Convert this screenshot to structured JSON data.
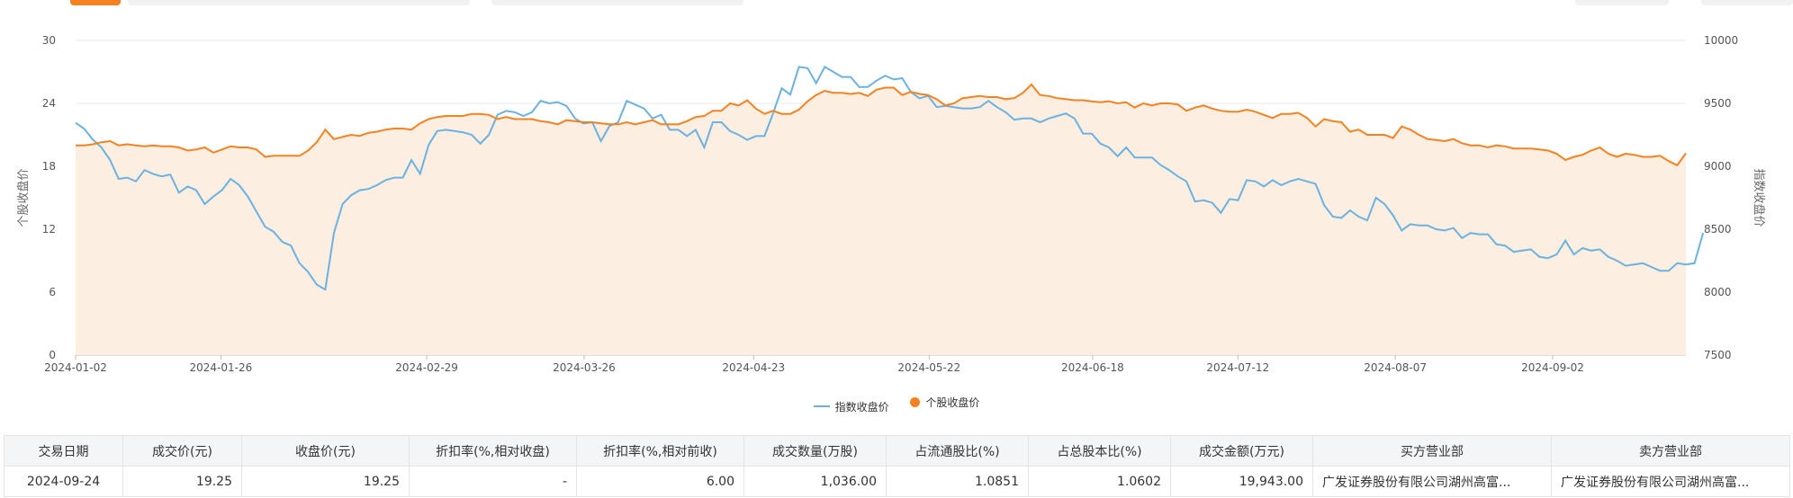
{
  "colors": {
    "index_line": "#6cb2e0",
    "stock_line": "#f58220",
    "area_fill": "#fdeee2",
    "grid": "#e9e9e9"
  },
  "chart_data": {
    "type": "line",
    "title": "",
    "xlabel": "",
    "ylabel": "个股收盘价",
    "y2label": "指数收盘价",
    "ylim": [
      0,
      30
    ],
    "yticks": [
      0,
      6,
      12,
      18,
      24,
      30
    ],
    "y2lim": [
      7500,
      10000
    ],
    "y2ticks": [
      7500,
      8000,
      8500,
      9000,
      9500,
      10000
    ],
    "x_start": "2024-01-02",
    "x_end": "2024-09-24",
    "x_ticks": [
      "2024-01-02",
      "2024-01-26",
      "2024-02-29",
      "2024-03-26",
      "2024-04-23",
      "2024-05-22",
      "2024-06-18",
      "2024-07-12",
      "2024-08-07",
      "2024-09-02"
    ],
    "grid": true,
    "legend_position": "bottom-center",
    "series": [
      {
        "name": "指数收盘价",
        "axis": "right",
        "values": [
          9345,
          9298,
          9212,
          9150,
          9050,
          8900,
          8910,
          8880,
          8970,
          8940,
          8920,
          8935,
          8790,
          8840,
          8810,
          8700,
          8760,
          8810,
          8900,
          8850,
          8760,
          8640,
          8520,
          8480,
          8400,
          8370,
          8230,
          8160,
          8060,
          8020,
          8470,
          8700,
          8770,
          8810,
          8820,
          8850,
          8890,
          8910,
          8910,
          9050,
          8940,
          9170,
          9280,
          9290,
          9280,
          9270,
          9250,
          9180,
          9250,
          9410,
          9440,
          9430,
          9400,
          9430,
          9520,
          9500,
          9510,
          9480,
          9380,
          9340,
          9350,
          9200,
          9320,
          9350,
          9520,
          9490,
          9460,
          9380,
          9410,
          9290,
          9290,
          9240,
          9290,
          9150,
          9350,
          9350,
          9280,
          9250,
          9210,
          9240,
          9240,
          9420,
          9620,
          9570,
          9790,
          9780,
          9660,
          9790,
          9750,
          9710,
          9710,
          9630,
          9630,
          9680,
          9720,
          9690,
          9700,
          9590,
          9540,
          9560,
          9470,
          9480,
          9470,
          9460,
          9460,
          9470,
          9520,
          9470,
          9430,
          9370,
          9380,
          9380,
          9350,
          9380,
          9400,
          9420,
          9380,
          9260,
          9260,
          9180,
          9150,
          9080,
          9150,
          9070,
          9070,
          9070,
          9010,
          8970,
          8920,
          8880,
          8720,
          8730,
          8710,
          8630,
          8740,
          8730,
          8890,
          8880,
          8840,
          8890,
          8850,
          8880,
          8900,
          8880,
          8860,
          8690,
          8600,
          8590,
          8650,
          8600,
          8570,
          8750,
          8700,
          8610,
          8490,
          8540,
          8530,
          8530,
          8500,
          8490,
          8510,
          8430,
          8470,
          8460,
          8460,
          8380,
          8370,
          8320,
          8330,
          8340,
          8280,
          8270,
          8300,
          8410,
          8300,
          8350,
          8330,
          8340,
          8280,
          8250,
          8210,
          8220,
          8230,
          8200,
          8170,
          8170,
          8230,
          8220,
          8230,
          8470
        ]
      },
      {
        "name": "个股收盘价",
        "axis": "left",
        "values": [
          20.0,
          20.0,
          20.1,
          20.3,
          20.4,
          20.0,
          20.1,
          20.0,
          19.9,
          20.0,
          19.9,
          19.9,
          19.8,
          19.5,
          19.6,
          19.8,
          19.3,
          19.6,
          19.9,
          19.8,
          19.8,
          19.6,
          18.9,
          19.0,
          19.0,
          19.0,
          19.0,
          19.5,
          20.3,
          21.5,
          20.6,
          20.8,
          21.0,
          20.9,
          21.2,
          21.3,
          21.5,
          21.6,
          21.6,
          21.5,
          22.1,
          22.5,
          22.7,
          22.8,
          22.8,
          22.8,
          23.0,
          23.0,
          22.9,
          22.5,
          22.7,
          22.5,
          22.5,
          22.5,
          22.3,
          22.2,
          22.0,
          22.4,
          22.3,
          22.2,
          22.2,
          22.1,
          22.0,
          22.0,
          22.2,
          22.0,
          22.2,
          22.4,
          22.0,
          22.0,
          22.0,
          22.3,
          22.7,
          22.8,
          23.3,
          23.3,
          24.0,
          23.8,
          24.3,
          23.5,
          23.0,
          23.3,
          23.0,
          23.0,
          23.4,
          24.2,
          24.8,
          25.2,
          25.0,
          25.0,
          24.9,
          25.0,
          24.7,
          25.3,
          25.5,
          25.5,
          24.8,
          25.1,
          24.9,
          24.8,
          24.4,
          23.8,
          24.0,
          24.5,
          24.6,
          24.7,
          24.6,
          24.6,
          24.4,
          24.5,
          25.0,
          25.8,
          24.8,
          24.7,
          24.5,
          24.4,
          24.3,
          24.3,
          24.2,
          24.1,
          24.2,
          24.0,
          24.1,
          23.6,
          24.0,
          23.8,
          24.0,
          24.0,
          23.9,
          23.3,
          23.6,
          23.8,
          23.5,
          23.3,
          23.2,
          23.2,
          23.4,
          23.2,
          22.9,
          22.6,
          23.0,
          23.0,
          23.1,
          22.6,
          21.8,
          22.5,
          22.3,
          22.2,
          21.3,
          21.5,
          21.0,
          21.0,
          21.0,
          20.7,
          21.8,
          21.5,
          21.0,
          20.6,
          20.5,
          20.4,
          20.6,
          20.2,
          20.0,
          20.0,
          19.8,
          20.0,
          19.9,
          19.7,
          19.7,
          19.7,
          19.6,
          19.5,
          19.2,
          18.6,
          18.9,
          19.1,
          19.5,
          19.8,
          19.2,
          18.9,
          19.2,
          19.1,
          18.9,
          18.9,
          19.0,
          18.5,
          18.1,
          19.25
        ]
      }
    ]
  },
  "legend": {
    "index_label": "指数收盘价",
    "stock_label": "个股收盘价"
  },
  "table": {
    "headers": [
      "交易日期",
      "成交价(元)",
      "收盘价(元)",
      "折扣率(%,相对收盘)",
      "折扣率(%,相对前收)",
      "成交数量(万股)",
      "占流通股比(%)",
      "占总股本比(%)",
      "成交金额(万元)",
      "买方营业部",
      "卖方营业部"
    ],
    "rows": [
      [
        "2024-09-24",
        "19.25",
        "19.25",
        "-",
        "6.00",
        "1,036.00",
        "1.0851",
        "1.0602",
        "19,943.00",
        "广发证券股份有限公司湖州高富...",
        "广发证券股份有限公司湖州高富..."
      ]
    ]
  }
}
